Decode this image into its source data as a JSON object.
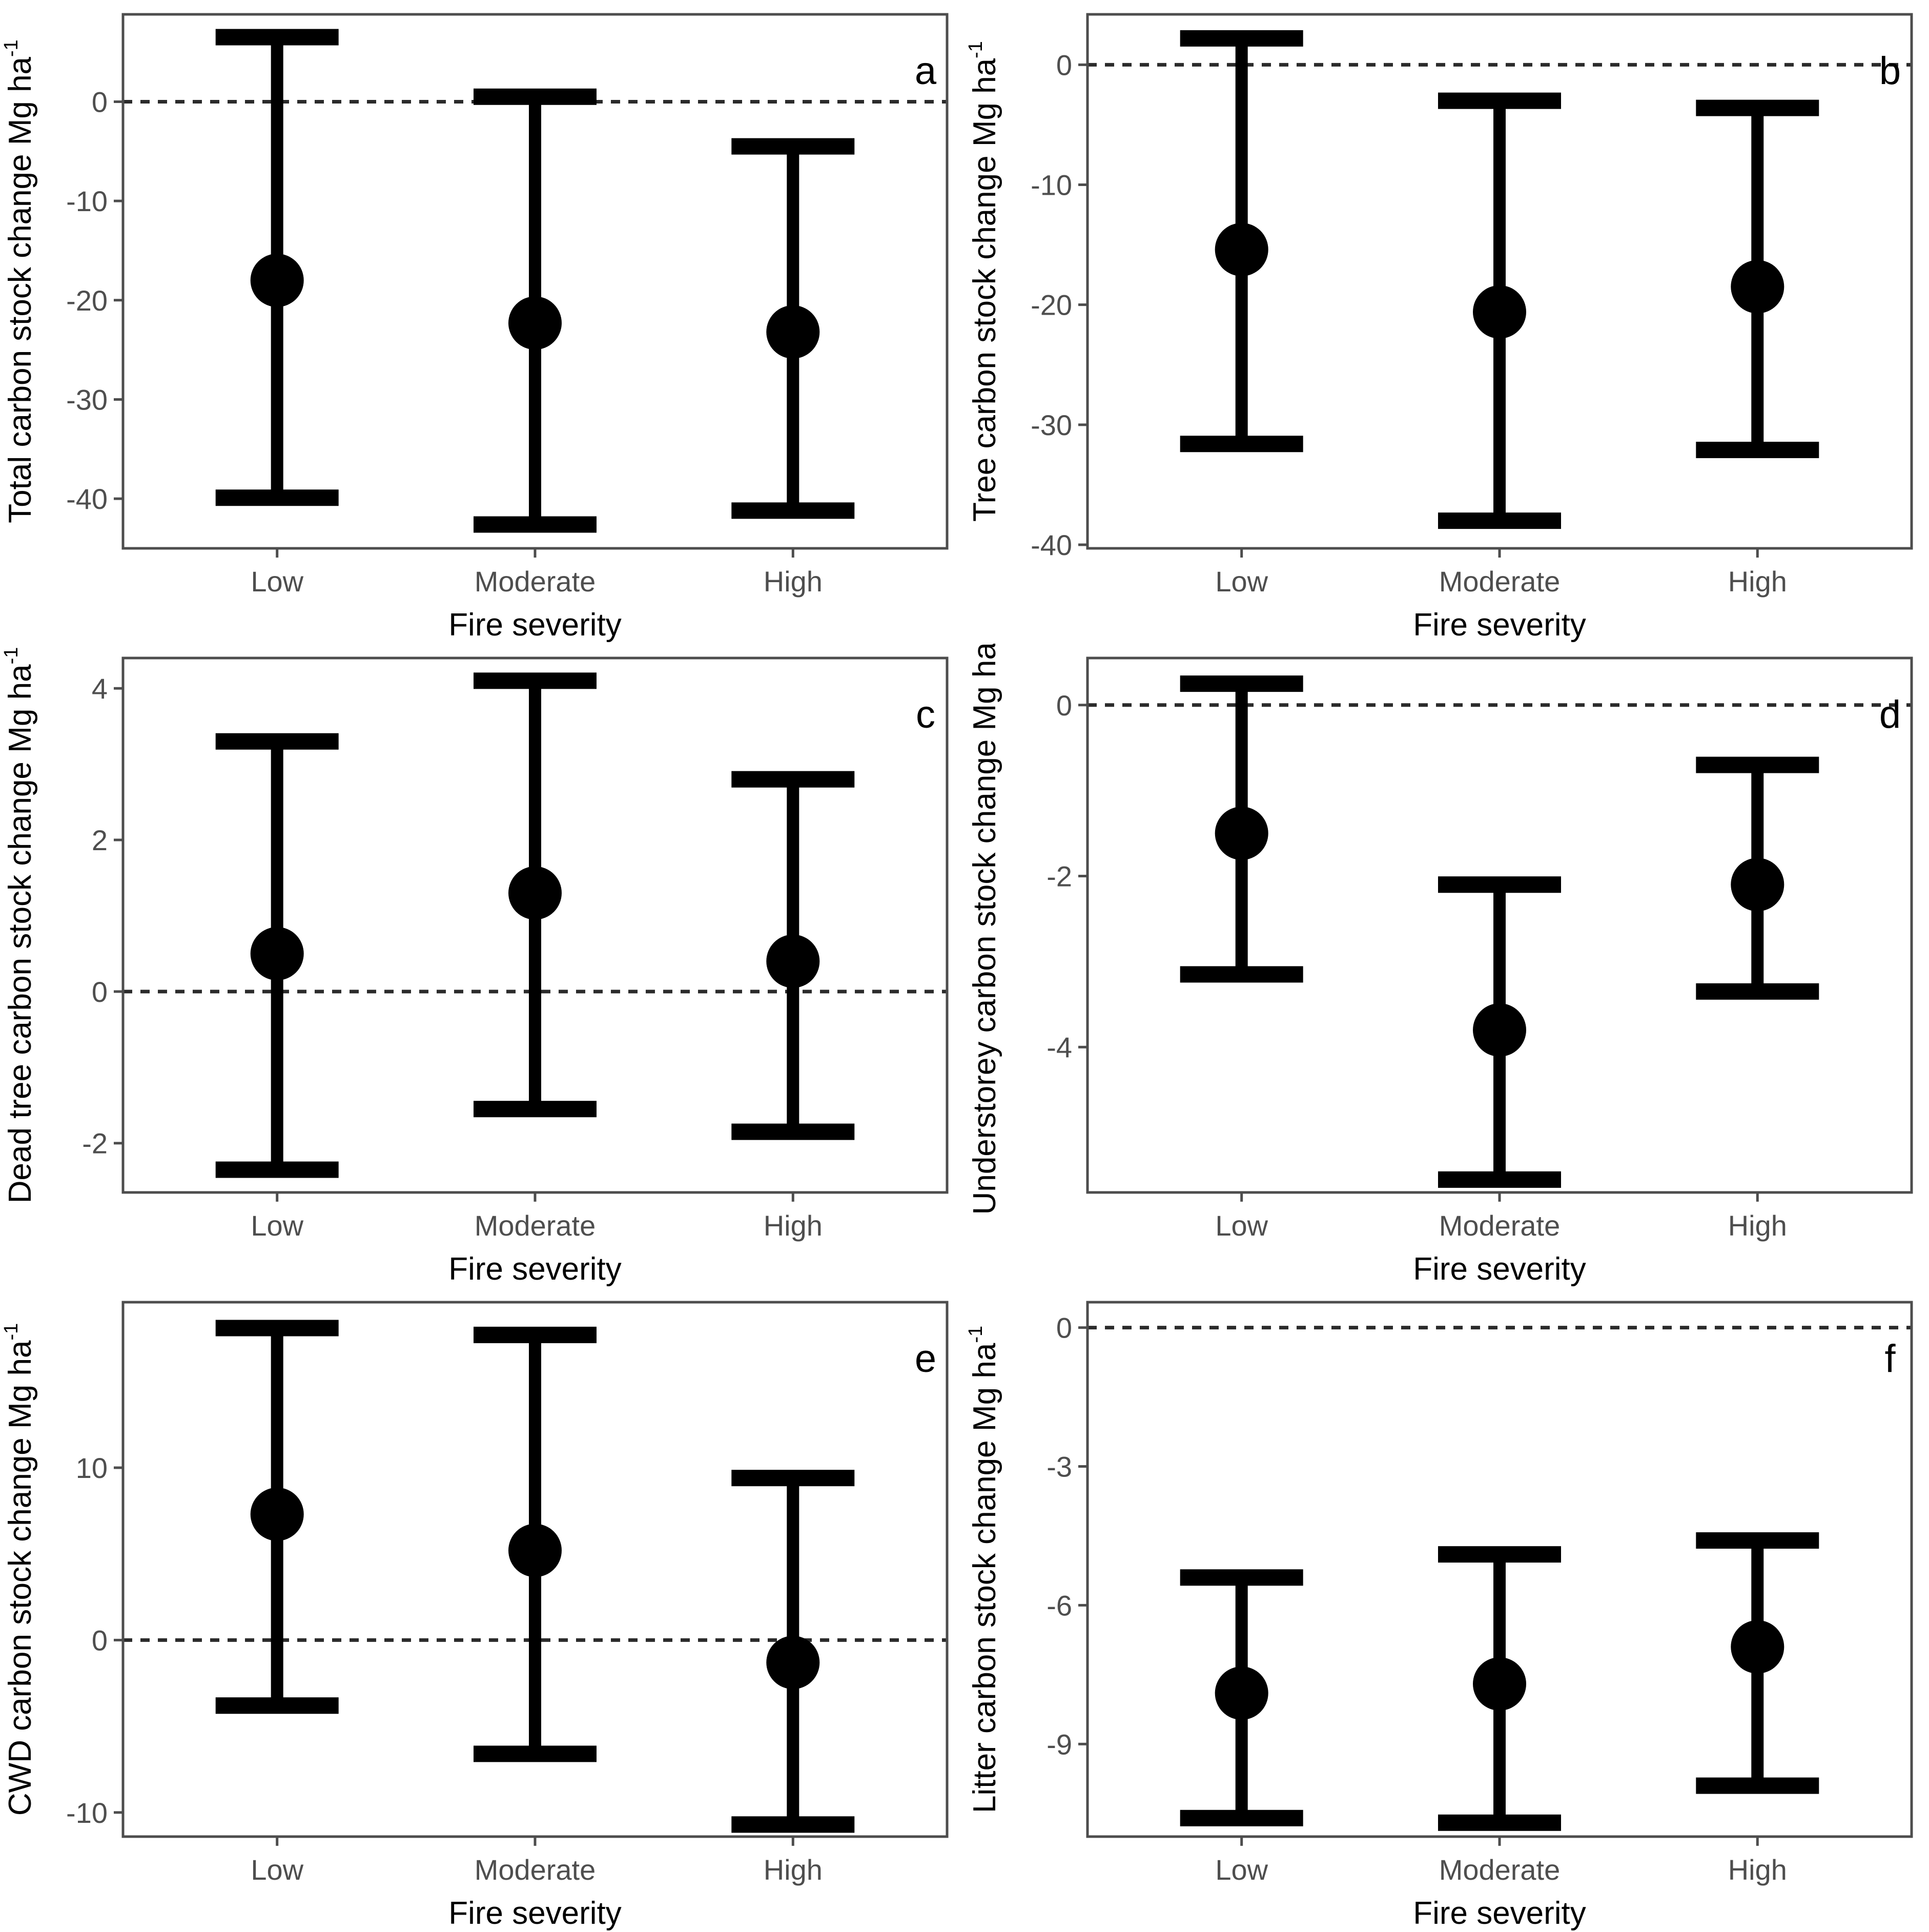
{
  "figure": {
    "background": "#ffffff",
    "panel_grid": {
      "columns": 2,
      "rows": 3
    },
    "colors": {
      "point_and_bar": "#000000",
      "zero_line": "#2b2b2b",
      "plot_border": "#4d4d4d",
      "tick_text": "#4e4e4e",
      "axis_title_text": "#000000",
      "panel_letter_text": "#000000"
    }
  },
  "chart_data": [
    {
      "id": "a",
      "letter": "a",
      "type": "pointrange",
      "ylabel": "Total carbon stock change Mg ha",
      "ylabel_sup": "-1",
      "xlabel": "Fire severity",
      "categories": [
        "Low",
        "Moderate",
        "High"
      ],
      "yticks": [
        0,
        -10,
        -20,
        -30,
        -40
      ],
      "ylim": [
        8.8,
        -45.0
      ],
      "zero_line": true,
      "points": [
        {
          "category": "Low",
          "mean": -18.0,
          "ci_low": -39.9,
          "ci_high": 6.5
        },
        {
          "category": "Moderate",
          "mean": -22.3,
          "ci_low": -42.6,
          "ci_high": 0.5
        },
        {
          "category": "High",
          "mean": -23.2,
          "ci_low": -41.2,
          "ci_high": -4.5
        }
      ]
    },
    {
      "id": "b",
      "letter": "b",
      "type": "pointrange",
      "ylabel": "Tree carbon stock change Mg ha",
      "ylabel_sup": "-1",
      "xlabel": "Fire severity",
      "categories": [
        "Low",
        "Moderate",
        "High"
      ],
      "yticks": [
        0,
        -10,
        -20,
        -30,
        -40
      ],
      "ylim": [
        4.2,
        -40.3
      ],
      "zero_line": true,
      "points": [
        {
          "category": "Low",
          "mean": -15.4,
          "ci_low": -31.6,
          "ci_high": 2.2
        },
        {
          "category": "Moderate",
          "mean": -20.6,
          "ci_low": -38.0,
          "ci_high": -3.0
        },
        {
          "category": "High",
          "mean": -18.5,
          "ci_low": -32.1,
          "ci_high": -3.6
        }
      ]
    },
    {
      "id": "c",
      "letter": "c",
      "type": "pointrange",
      "ylabel": "Dead tree carbon stock change Mg ha",
      "ylabel_sup": "-1",
      "xlabel": "Fire severity",
      "categories": [
        "Low",
        "Moderate",
        "High"
      ],
      "yticks": [
        4,
        2,
        0,
        -2
      ],
      "ylim": [
        4.4,
        -2.65
      ],
      "zero_line": true,
      "points": [
        {
          "category": "Low",
          "mean": 0.5,
          "ci_low": -2.35,
          "ci_high": 3.3
        },
        {
          "category": "Moderate",
          "mean": 1.3,
          "ci_low": -1.55,
          "ci_high": 4.1
        },
        {
          "category": "High",
          "mean": 0.4,
          "ci_low": -1.85,
          "ci_high": 2.8
        }
      ]
    },
    {
      "id": "d",
      "letter": "d",
      "type": "pointrange",
      "ylabel": "Understorey carbon stock change Mg ha",
      "ylabel_sup": "˙",
      "xlabel": "Fire severity",
      "categories": [
        "Low",
        "Moderate",
        "High"
      ],
      "yticks": [
        0,
        -2,
        -4
      ],
      "ylim": [
        0.55,
        -5.7
      ],
      "zero_line": true,
      "points": [
        {
          "category": "Low",
          "mean": -1.5,
          "ci_low": -3.15,
          "ci_high": 0.25
        },
        {
          "category": "Moderate",
          "mean": -3.8,
          "ci_low": -5.55,
          "ci_high": -2.1
        },
        {
          "category": "High",
          "mean": -2.1,
          "ci_low": -3.35,
          "ci_high": -0.7
        }
      ]
    },
    {
      "id": "e",
      "letter": "e",
      "type": "pointrange",
      "ylabel": "CWD carbon stock change Mg ha",
      "ylabel_sup": "-1",
      "xlabel": "Fire severity",
      "categories": [
        "Low",
        "Moderate",
        "High"
      ],
      "yticks": [
        10,
        0,
        -10
      ],
      "ylim": [
        19.6,
        -11.4
      ],
      "zero_line": true,
      "points": [
        {
          "category": "Low",
          "mean": 7.3,
          "ci_low": -3.8,
          "ci_high": 18.1
        },
        {
          "category": "Moderate",
          "mean": 5.2,
          "ci_low": -6.6,
          "ci_high": 17.7
        },
        {
          "category": "High",
          "mean": -1.3,
          "ci_low": -10.7,
          "ci_high": 9.4
        }
      ]
    },
    {
      "id": "f",
      "letter": "f",
      "type": "pointrange",
      "ylabel": "Litter carbon stock change Mg ha",
      "ylabel_sup": "-1",
      "xlabel": "Fire severity",
      "categories": [
        "Low",
        "Moderate",
        "High"
      ],
      "yticks": [
        0,
        -3,
        -6,
        -9
      ],
      "ylim": [
        0.55,
        -11.0
      ],
      "zero_line": true,
      "points": [
        {
          "category": "Low",
          "mean": -7.9,
          "ci_low": -10.6,
          "ci_high": -5.4
        },
        {
          "category": "Moderate",
          "mean": -7.7,
          "ci_low": -10.7,
          "ci_high": -4.9
        },
        {
          "category": "High",
          "mean": -6.9,
          "ci_low": -9.9,
          "ci_high": -4.6
        }
      ]
    }
  ]
}
